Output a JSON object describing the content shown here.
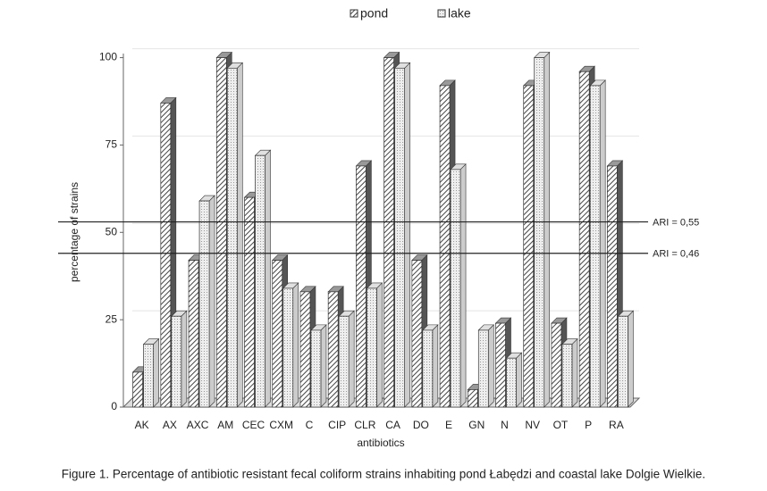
{
  "chart_data": {
    "type": "bar3d",
    "caption": "Figure 1. Percentage of antibiotic resistant fecal coliform strains inhabiting pond Łabędzi and coastal lake Dolgie Wielkie.",
    "xlabel": "antibiotics",
    "ylabel": "percentage of strains",
    "categories": [
      "AK",
      "AX",
      "AXC",
      "AM",
      "CEC",
      "CXM",
      "C",
      "CIP",
      "CLR",
      "CA",
      "DO",
      "E",
      "GN",
      "N",
      "NV",
      "OT",
      "P",
      "RA"
    ],
    "series": [
      {
        "name": "pond",
        "color": "#444444",
        "values": [
          10,
          87,
          42,
          100,
          60,
          42,
          33,
          33,
          69,
          100,
          42,
          92,
          5,
          24,
          92,
          24,
          96,
          69
        ]
      },
      {
        "name": "lake",
        "color": "#bbbbbb",
        "values": [
          18,
          26,
          59,
          97,
          72,
          34,
          22,
          26,
          34,
          97,
          22,
          68,
          22,
          14,
          100,
          18,
          92,
          26
        ]
      }
    ],
    "reference_lines": [
      {
        "value": 53,
        "label": "ARI = 0,55"
      },
      {
        "value": 44,
        "label": "ARI = 0,46"
      }
    ],
    "ylim": [
      0,
      105
    ],
    "yticks": [
      0,
      25,
      50,
      75,
      100
    ],
    "grid": true,
    "legend": "top"
  }
}
